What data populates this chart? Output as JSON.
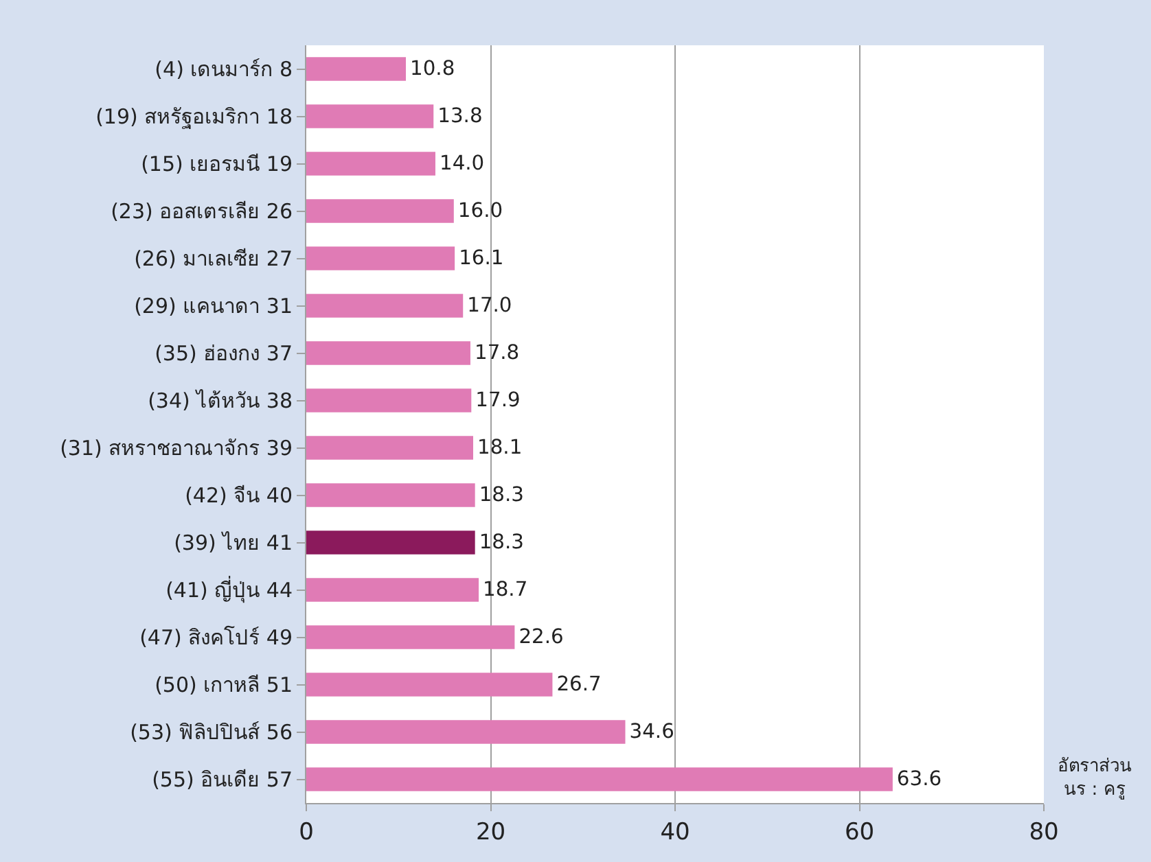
{
  "chart_data": {
    "type": "bar",
    "orientation": "horizontal",
    "xlabel": "อัตราส่วน\nนร : ครู",
    "categories": [
      "(4) เดนมาร์ก 8",
      "(19) สหรัฐอเมริกา 18",
      "(15) เยอรมนี 19",
      "(23) ออสเตรเลีย 26",
      "(26) มาเลเซีย 27",
      "(29) แคนาดา 31",
      "(35) ฮ่องกง 37",
      "(34) ไต้หวัน 38",
      "(31) สหราชอาณาจักร 39",
      "(42) จีน 40",
      "(39) ไทย 41",
      "(41) ญี่ปุ่น 44",
      "(47) สิงคโปร์ 49",
      "(50) เกาหลี 51",
      "(53) ฟิลิปปินส์ 56",
      "(55) อินเดีย 57"
    ],
    "values": [
      10.8,
      13.8,
      14.0,
      16.0,
      16.1,
      17.0,
      17.8,
      17.9,
      18.1,
      18.3,
      18.3,
      18.7,
      22.6,
      26.7,
      34.6,
      63.6
    ],
    "value_labels": [
      "10.8",
      "13.8",
      "14.0",
      "16.0",
      "16.1",
      "17.0",
      "17.8",
      "17.9",
      "18.1",
      "18.3",
      "18.3",
      "18.7",
      "22.6",
      "26.7",
      "34.6",
      "63.6"
    ],
    "colors": [
      "#e07bb5",
      "#e07bb5",
      "#e07bb5",
      "#e07bb5",
      "#e07bb5",
      "#e07bb5",
      "#e07bb5",
      "#e07bb5",
      "#e07bb5",
      "#e07bb5",
      "#8b1a5c",
      "#e07bb5",
      "#e07bb5",
      "#e07bb5",
      "#e07bb5",
      "#e07bb5"
    ],
    "xlim": [
      0,
      80
    ],
    "xticks": [
      0,
      20,
      40,
      60,
      80
    ],
    "grid": "x"
  }
}
